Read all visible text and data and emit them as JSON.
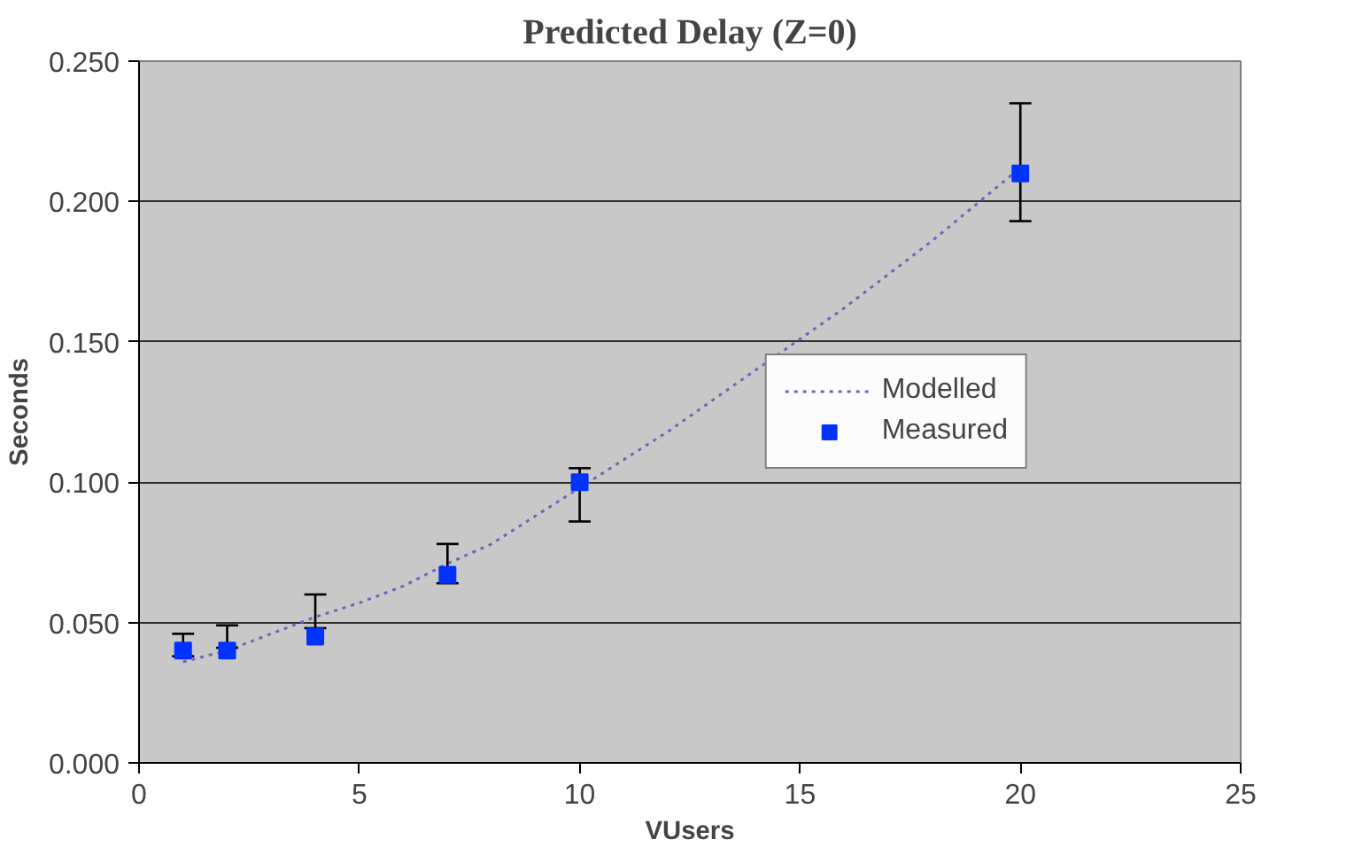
{
  "chart_data": {
    "type": "scatter",
    "title": "Predicted Delay (Z=0)",
    "xlabel": "VUsers",
    "ylabel": "Seconds",
    "xlim": [
      0,
      25
    ],
    "xticks": [
      0,
      5,
      10,
      15,
      20,
      25
    ],
    "ylim": [
      0,
      0.25
    ],
    "yticks": [
      {
        "value": 0,
        "label": "0.000"
      },
      {
        "value": 0.05,
        "label": "0.050"
      },
      {
        "value": 0.1,
        "label": "0.100"
      },
      {
        "value": 0.15,
        "label": "0.150"
      },
      {
        "value": 0.2,
        "label": "0.200"
      },
      {
        "value": 0.25,
        "label": "0.250"
      }
    ],
    "grid": "y",
    "legend": "right",
    "series": [
      {
        "name": "Modelled",
        "type": "line",
        "line_style": "dotted",
        "marker": "none",
        "color": "#6a6ab8",
        "x": [
          1,
          2,
          3,
          4,
          5,
          6,
          7,
          8,
          9,
          10,
          12,
          14,
          16,
          18,
          20
        ],
        "values": [
          0.036,
          0.04,
          0.046,
          0.052,
          0.057,
          0.063,
          0.071,
          0.078,
          0.088,
          0.098,
          0.118,
          0.14,
          0.162,
          0.186,
          0.212
        ]
      },
      {
        "name": "Measured",
        "marker": "square",
        "color": "#0033ff",
        "x": [
          1,
          2,
          4,
          7,
          10,
          20
        ],
        "values": [
          0.04,
          0.04,
          0.045,
          0.067,
          0.1,
          0.21
        ],
        "errors": [
          [
            0.038,
            0.046
          ],
          [
            0.041,
            0.049
          ],
          [
            0.048,
            0.06
          ],
          [
            0.064,
            0.078
          ],
          [
            0.086,
            0.105
          ],
          [
            0.193,
            0.235
          ]
        ]
      }
    ]
  }
}
